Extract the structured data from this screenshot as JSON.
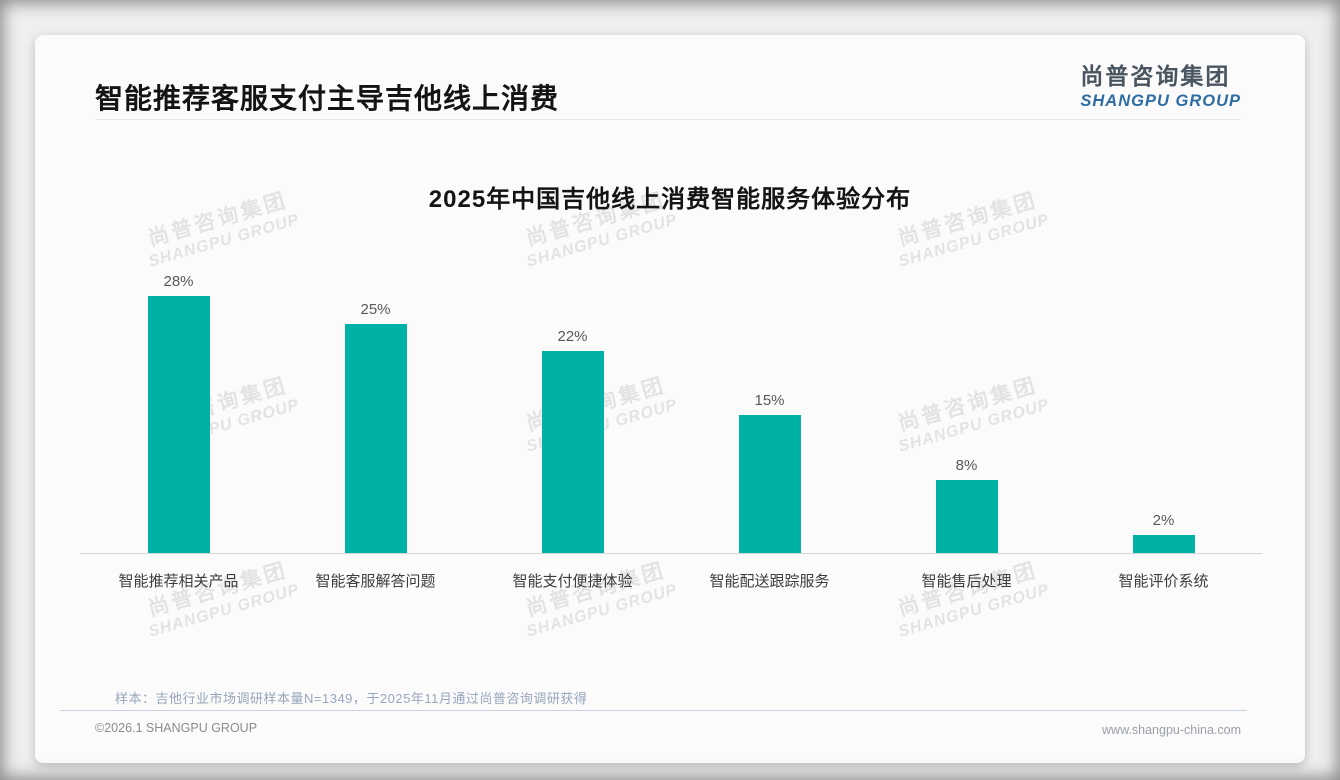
{
  "page": {
    "header": {
      "title": "智能推荐客服支付主导吉他线上消费",
      "logo": {
        "cn": "尚普咨询集团",
        "en": "SHANGPU GROUP"
      }
    },
    "watermark": {
      "line1": "尚普咨询集团",
      "line2": "SHANGPU GROUP"
    },
    "note": "样本：吉他行业市场调研样本量N=1349，于2025年11月通过尚普咨询调研获得",
    "footer": {
      "left": "©2026.1 SHANGPU GROUP",
      "right": "www.shangpu-china.com"
    }
  },
  "chart_data": {
    "type": "bar",
    "title": "2025年中国吉他线上消费智能服务体验分布",
    "categories": [
      "智能推荐相关产品",
      "智能客服解答问题",
      "智能支付便捷体验",
      "智能配送跟踪服务",
      "智能售后处理",
      "智能评价系统"
    ],
    "values": [
      28,
      25,
      22,
      15,
      8,
      2
    ],
    "value_labels": [
      "28%",
      "25%",
      "22%",
      "15%",
      "8%",
      "2%"
    ],
    "unit": "%",
    "xlabel": "",
    "ylabel": "",
    "ylim": [
      0,
      30
    ],
    "grid": false,
    "legend": false,
    "bar_color": "#00b1a6",
    "value_label_color": "#595959",
    "axis_label_color": "#3d3d3d"
  }
}
